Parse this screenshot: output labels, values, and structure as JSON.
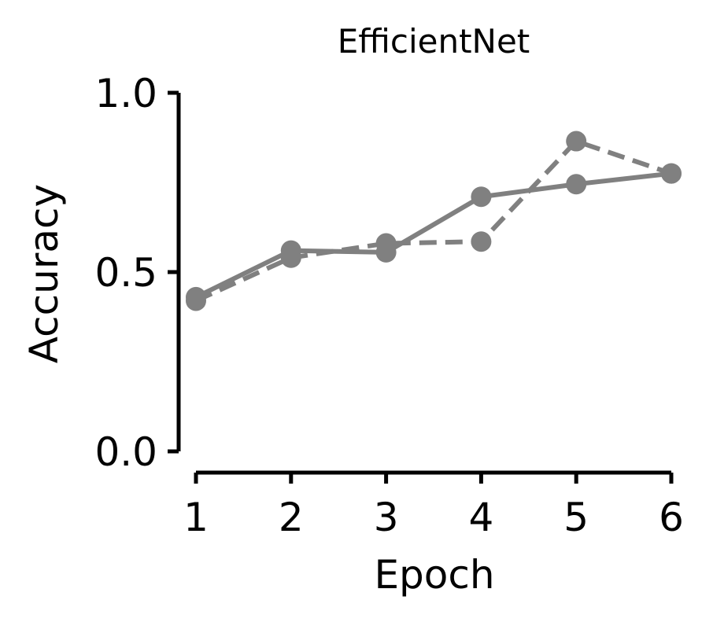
{
  "chart_data": {
    "type": "line",
    "title": "EfficientNet",
    "xlabel": "Epoch",
    "ylabel": "Accuracy",
    "x": [
      1,
      2,
      3,
      4,
      5,
      6
    ],
    "xlim": [
      1,
      6
    ],
    "ylim": [
      0.0,
      1.0
    ],
    "xticks": [
      "1",
      "2",
      "3",
      "4",
      "5",
      "6"
    ],
    "yticks": [
      "0.0",
      "0.5",
      "1.0"
    ],
    "yticks_values": [
      0.0,
      0.5,
      1.0
    ],
    "grid": false,
    "legend": "none",
    "series": [
      {
        "style": "solid",
        "color": "#808080",
        "values": [
          0.43,
          0.56,
          0.555,
          0.71,
          0.745,
          0.775
        ]
      },
      {
        "style": "dashed",
        "color": "#808080",
        "values": [
          0.42,
          0.54,
          0.58,
          0.585,
          0.865,
          0.775
        ]
      }
    ]
  }
}
